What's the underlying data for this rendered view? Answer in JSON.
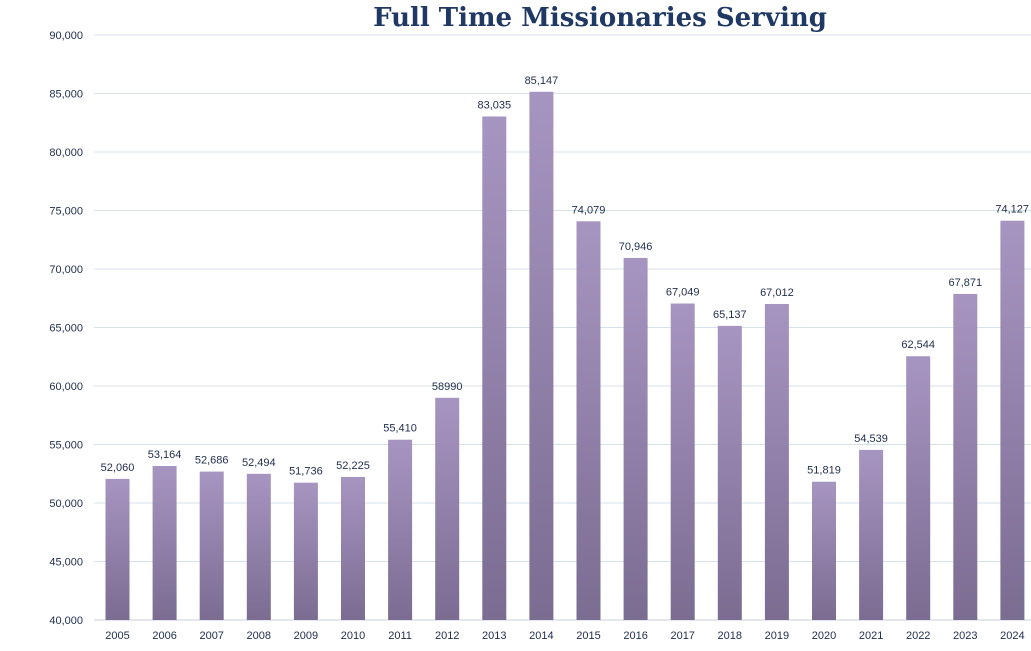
{
  "chart_data": {
    "type": "bar",
    "title": "Full Time Missionaries Serving",
    "xlabel": "",
    "ylabel": "",
    "ylim": [
      40000,
      90000
    ],
    "yticks": [
      "40,000",
      "45,000",
      "50,000",
      "55,000",
      "60,000",
      "65,000",
      "70,000",
      "75,000",
      "80,000",
      "85,000",
      "90,000"
    ],
    "ytick_values": [
      40000,
      45000,
      50000,
      55000,
      60000,
      65000,
      70000,
      75000,
      80000,
      85000,
      90000
    ],
    "grid": true,
    "legend": "none",
    "bar_color_top": "#a795c1",
    "bar_color_bottom": "#7b6c92",
    "categories": [
      "2005",
      "2006",
      "2007",
      "2008",
      "2009",
      "2010",
      "2011",
      "2012",
      "2013",
      "2014",
      "2015",
      "2016",
      "2017",
      "2018",
      "2019",
      "2020",
      "2021",
      "2022",
      "2023",
      "2024"
    ],
    "values": [
      52060,
      53164,
      52686,
      52494,
      51736,
      52225,
      55410,
      58990,
      83035,
      85147,
      74079,
      70946,
      67049,
      65137,
      67012,
      51819,
      54539,
      62544,
      67871,
      74127
    ],
    "data_labels": [
      "52,060",
      "53,164",
      "52,686",
      "52,494",
      "51,736",
      "52,225",
      "55,410",
      "58990",
      "83,035",
      "85,147",
      "74,079",
      "70,946",
      "67,049",
      "65,137",
      "67,012",
      "51,819",
      "54,539",
      "62,544",
      "67,871",
      "74,127"
    ]
  }
}
